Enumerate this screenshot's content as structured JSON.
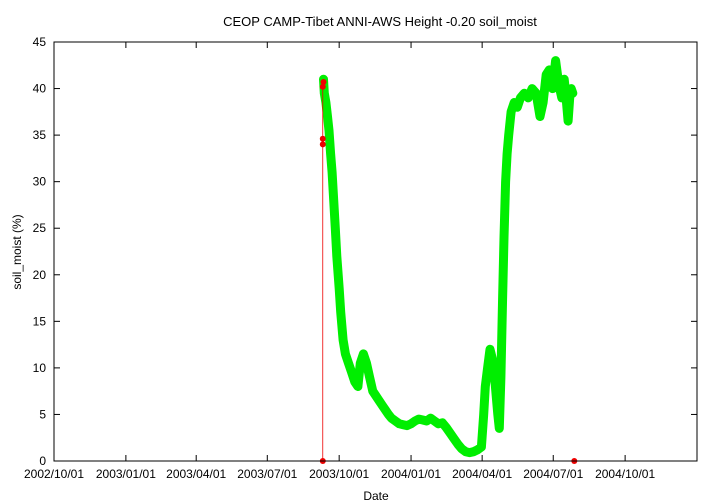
{
  "chart_data": {
    "type": "scatter",
    "title": "CEOP CAMP-Tibet ANNI-AWS Height -0.20 soil_moist",
    "xlabel": "Date",
    "ylabel": "soil_moist (%)",
    "xlim": [
      "2002-10-01",
      "2005-01-01"
    ],
    "ylim": [
      0,
      45
    ],
    "x_ticks": [
      "2002/10/01",
      "2003/01/01",
      "2003/04/01",
      "2003/07/01",
      "2003/10/01",
      "2004/01/01",
      "2004/04/01",
      "2004/07/01",
      "2004/10/01"
    ],
    "y_ticks": [
      0,
      5,
      10,
      15,
      20,
      25,
      30,
      35,
      40,
      45
    ],
    "grid": false,
    "legend": "none",
    "colors": {
      "good": "#00ee00",
      "flagged": "#ee0000"
    },
    "series": [
      {
        "color": "#00ee00",
        "points": [
          [
            "2003-09-11",
            41.0
          ],
          [
            "2003-09-12",
            39.5
          ],
          [
            "2003-09-14",
            38.5
          ],
          [
            "2003-09-16",
            37.0
          ],
          [
            "2003-09-18",
            35.5
          ],
          [
            "2003-09-20",
            33.0
          ],
          [
            "2003-09-22",
            31.0
          ],
          [
            "2003-09-24",
            28.0
          ],
          [
            "2003-09-26",
            25.0
          ],
          [
            "2003-09-28",
            22.0
          ],
          [
            "2003-10-01",
            18.5
          ],
          [
            "2003-10-03",
            16.0
          ],
          [
            "2003-10-06",
            13.0
          ],
          [
            "2003-10-09",
            11.5
          ],
          [
            "2003-10-13",
            10.5
          ],
          [
            "2003-10-17",
            9.5
          ],
          [
            "2003-10-21",
            8.5
          ],
          [
            "2003-10-25",
            8.0
          ],
          [
            "2003-10-28",
            10.5
          ],
          [
            "2003-11-01",
            11.5
          ],
          [
            "2003-11-05",
            10.5
          ],
          [
            "2003-11-09",
            9.0
          ],
          [
            "2003-11-13",
            7.5
          ],
          [
            "2003-11-17",
            7.0
          ],
          [
            "2003-11-21",
            6.5
          ],
          [
            "2003-11-25",
            6.0
          ],
          [
            "2003-11-29",
            5.5
          ],
          [
            "2003-12-03",
            5.0
          ],
          [
            "2003-12-07",
            4.6
          ],
          [
            "2003-12-12",
            4.3
          ],
          [
            "2003-12-17",
            4.0
          ],
          [
            "2003-12-22",
            3.9
          ],
          [
            "2003-12-27",
            3.8
          ],
          [
            "2004-01-01",
            4.0
          ],
          [
            "2004-01-06",
            4.3
          ],
          [
            "2004-01-11",
            4.5
          ],
          [
            "2004-01-16",
            4.4
          ],
          [
            "2004-01-21",
            4.3
          ],
          [
            "2004-01-26",
            4.6
          ],
          [
            "2004-01-31",
            4.3
          ],
          [
            "2004-02-05",
            4.0
          ],
          [
            "2004-02-10",
            4.1
          ],
          [
            "2004-02-15",
            3.6
          ],
          [
            "2004-02-20",
            3.0
          ],
          [
            "2004-02-25",
            2.4
          ],
          [
            "2004-03-01",
            1.8
          ],
          [
            "2004-03-06",
            1.3
          ],
          [
            "2004-03-11",
            1.0
          ],
          [
            "2004-03-16",
            0.9
          ],
          [
            "2004-03-21",
            1.0
          ],
          [
            "2004-03-26",
            1.2
          ],
          [
            "2004-03-31",
            1.5
          ],
          [
            "2004-04-03",
            5.0
          ],
          [
            "2004-04-05",
            8.0
          ],
          [
            "2004-04-08",
            10.0
          ],
          [
            "2004-04-11",
            12.0
          ],
          [
            "2004-04-14",
            11.0
          ],
          [
            "2004-04-17",
            9.0
          ],
          [
            "2004-04-19",
            7.0
          ],
          [
            "2004-04-21",
            5.0
          ],
          [
            "2004-04-23",
            3.5
          ],
          [
            "2004-04-25",
            9.0
          ],
          [
            "2004-04-27",
            17.0
          ],
          [
            "2004-04-29",
            24.0
          ],
          [
            "2004-05-01",
            30.0
          ],
          [
            "2004-05-03",
            33.0
          ],
          [
            "2004-05-05",
            35.0
          ],
          [
            "2004-05-08",
            37.5
          ],
          [
            "2004-05-12",
            38.5
          ],
          [
            "2004-05-16",
            38.0
          ],
          [
            "2004-05-20",
            39.0
          ],
          [
            "2004-05-25",
            39.5
          ],
          [
            "2004-05-30",
            39.0
          ],
          [
            "2004-06-04",
            40.0
          ],
          [
            "2004-06-09",
            39.5
          ],
          [
            "2004-06-14",
            37.0
          ],
          [
            "2004-06-18",
            38.5
          ],
          [
            "2004-06-22",
            41.5
          ],
          [
            "2004-06-26",
            42.0
          ],
          [
            "2004-06-30",
            40.0
          ],
          [
            "2004-07-04",
            43.0
          ],
          [
            "2004-07-08",
            40.5
          ],
          [
            "2004-07-12",
            39.0
          ],
          [
            "2004-07-15",
            41.0
          ],
          [
            "2004-07-18",
            38.5
          ],
          [
            "2004-07-20",
            36.5
          ],
          [
            "2004-07-22",
            39.0
          ],
          [
            "2004-07-24",
            40.0
          ],
          [
            "2004-07-26",
            39.5
          ]
        ]
      },
      {
        "color": "#ee0000",
        "points": [
          [
            "2003-09-10",
            0.0
          ],
          [
            "2003-09-10",
            34.0
          ],
          [
            "2003-09-10",
            34.6
          ],
          [
            "2003-09-10",
            40.2
          ],
          [
            "2003-09-11",
            40.7
          ],
          [
            "2004-07-28",
            0.0
          ]
        ]
      }
    ]
  }
}
